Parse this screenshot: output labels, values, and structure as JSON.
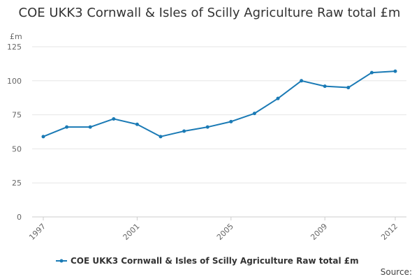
{
  "chart_data": {
    "type": "line",
    "title": "COE UKK3 Cornwall & Isles of Scilly Agriculture Raw total £m",
    "ylabel": "£m",
    "xlabel": "",
    "ylim": [
      0,
      125
    ],
    "yticks": [
      0,
      25,
      50,
      75,
      100,
      125
    ],
    "xlim": [
      1997,
      2012
    ],
    "xticks": [
      1997,
      2001,
      2005,
      2009,
      2012
    ],
    "grid": true,
    "legend_position": "bottom",
    "series": [
      {
        "name": "COE UKK3 Cornwall & Isles of Scilly Agriculture Raw total £m",
        "color": "#1a7ab5",
        "x": [
          1997,
          1998,
          1999,
          2000,
          2001,
          2002,
          2003,
          2004,
          2005,
          2006,
          2007,
          2008,
          2009,
          2010,
          2011,
          2012
        ],
        "y": [
          59,
          66,
          66,
          72,
          68,
          59,
          63,
          66,
          70,
          76,
          87,
          100,
          96,
          95,
          106,
          107
        ]
      }
    ]
  },
  "source_label": "Source:"
}
